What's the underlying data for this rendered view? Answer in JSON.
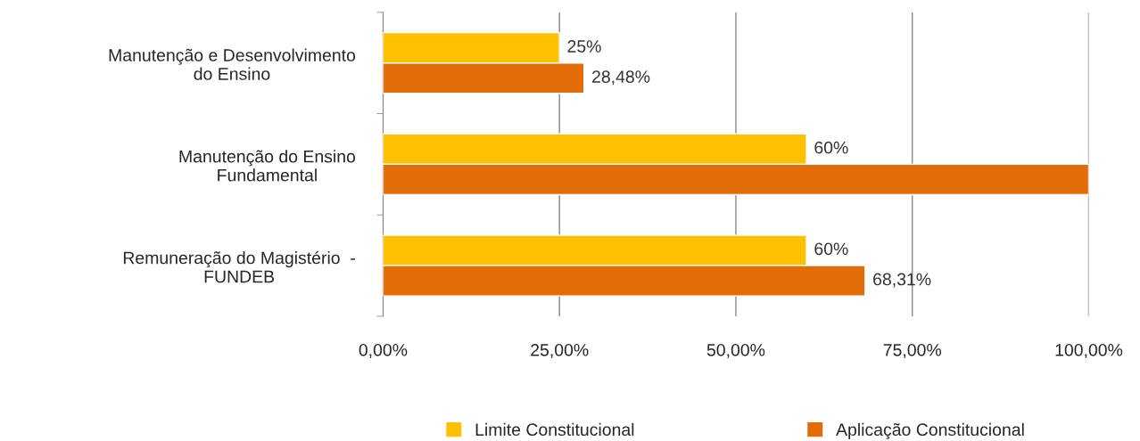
{
  "chart_data": {
    "type": "bar",
    "orientation": "horizontal",
    "categories": [
      "Manutenção e Desenvolvimento\ndo Ensino",
      "Manutenção do Ensino\nFundamental",
      "Remuneração do Magistério  -\nFUNDEB"
    ],
    "series": [
      {
        "name": "Limite Constitucional",
        "color": "#ffc000",
        "values": [
          25,
          60,
          60
        ],
        "value_labels": [
          "25%",
          "60%",
          "60%"
        ]
      },
      {
        "name": "Aplicação Constitucional",
        "color": "#e36c09",
        "values": [
          28.48,
          100,
          68.31
        ],
        "value_labels": [
          "28,48%",
          null,
          "68,31%"
        ]
      }
    ],
    "xlim": [
      0,
      100
    ],
    "xticks": [
      {
        "value": 0,
        "label": "0,00%"
      },
      {
        "value": 25,
        "label": "25,00%"
      },
      {
        "value": 50,
        "label": "50,00%"
      },
      {
        "value": 75,
        "label": "75,00%"
      },
      {
        "value": 100,
        "label": "100,00%"
      }
    ],
    "grid": "x",
    "legend": "bottom"
  }
}
